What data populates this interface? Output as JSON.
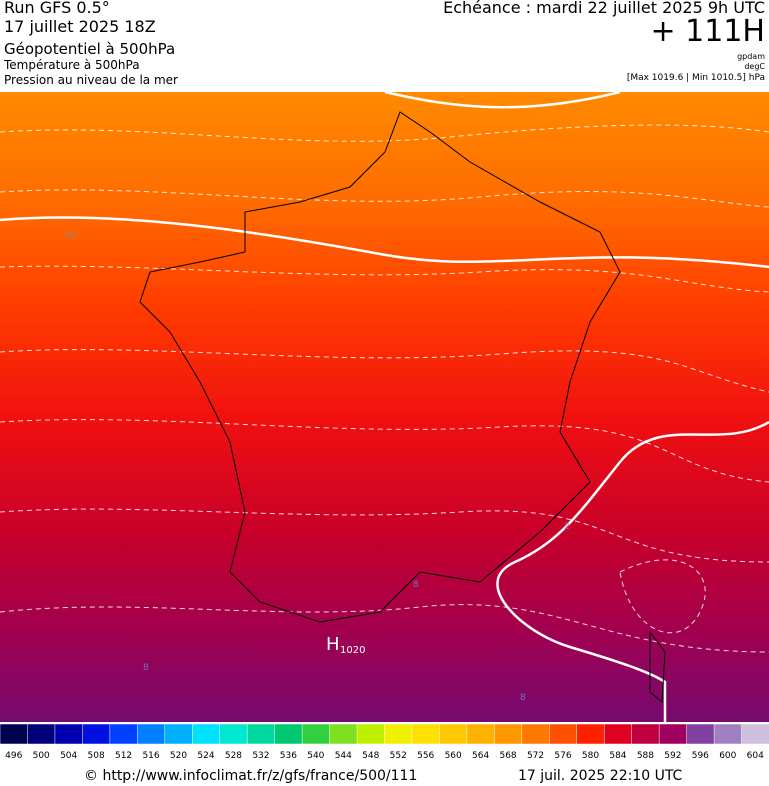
{
  "header": {
    "run_title": "Run GFS 0.5°",
    "run_date": "17 juillet 2025 18Z",
    "fields": [
      "Géopotentiel à 500hPa",
      "Température à 500hPa",
      "Pression au niveau de la mer"
    ],
    "echeance": "Echéance : mardi 22 juillet 2025 9h UTC",
    "lead": "+ 111H",
    "units": [
      "gpdam",
      "degC",
      "[Max 1019.6 | Min 1010.5] hPa"
    ]
  },
  "map": {
    "high_label": "H",
    "high_value": "1020",
    "contour_labels": [
      "16",
      "8",
      "8",
      "2",
      "8"
    ]
  },
  "colorbar": {
    "labels": [
      496,
      500,
      504,
      508,
      512,
      516,
      520,
      524,
      528,
      532,
      536,
      540,
      544,
      548,
      552,
      556,
      560,
      564,
      568,
      572,
      576,
      580,
      584,
      588,
      592,
      596,
      600,
      604
    ],
    "colors": [
      "#000050",
      "#00007a",
      "#0000b0",
      "#0010e0",
      "#0040ff",
      "#0080ff",
      "#00b0ff",
      "#00e0ff",
      "#00e8d0",
      "#00d8a0",
      "#00c870",
      "#30d040",
      "#80e020",
      "#c0f000",
      "#f0f000",
      "#ffe000",
      "#ffc800",
      "#ffb000",
      "#ff9800",
      "#ff7800",
      "#ff5000",
      "#ff2000",
      "#e00020",
      "#c00040",
      "#a00060",
      "#8040a0",
      "#a080c0",
      "#d0c0e0"
    ]
  },
  "footer": {
    "url": "© http://www.infoclimat.fr/z/gfs/france/500/111",
    "timestamp": "17 juil. 2025 22:10 UTC"
  }
}
